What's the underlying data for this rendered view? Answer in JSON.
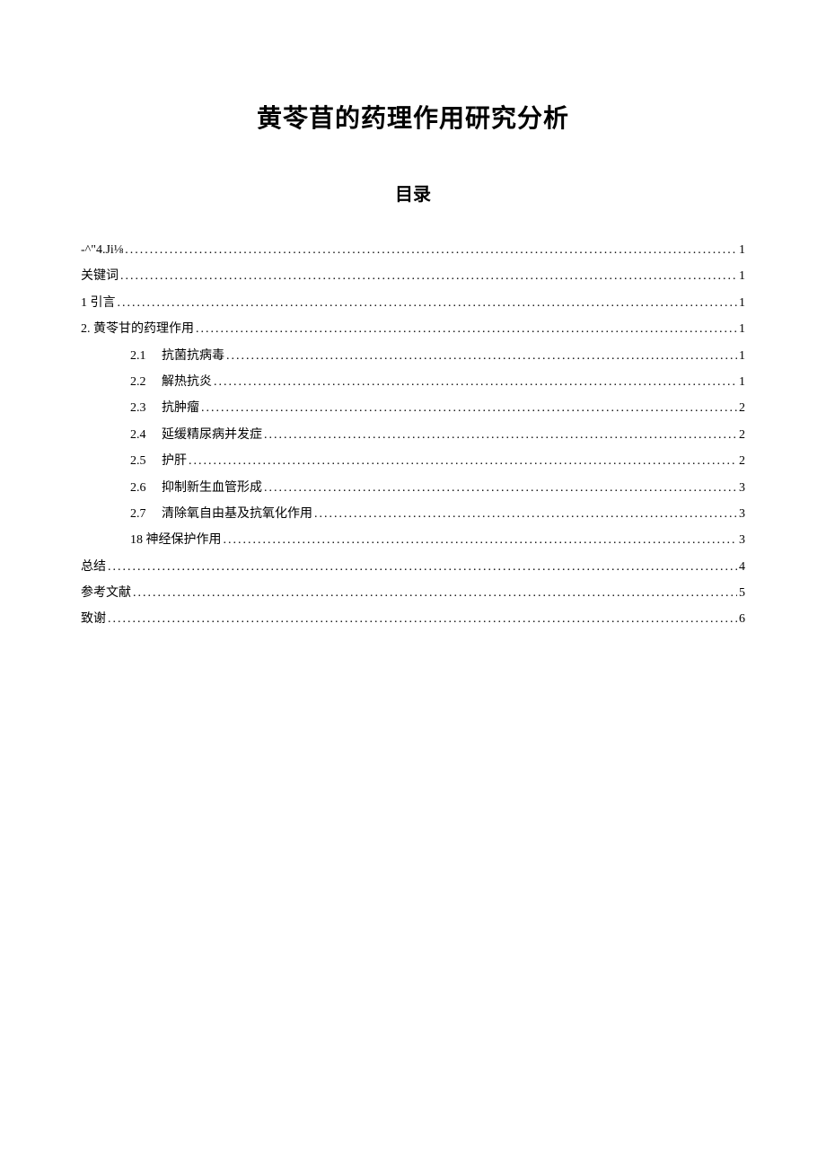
{
  "document": {
    "title": "黄苓苜的药理作用研究分析",
    "subtitle": "目录",
    "background_color": "#ffffff",
    "text_color": "#000000",
    "title_fontsize": 28,
    "subtitle_fontsize": 20,
    "body_fontsize": 14
  },
  "toc": {
    "entries": [
      {
        "level": 0,
        "num": "",
        "label": "-^\"4.Ji⅛",
        "page": "1"
      },
      {
        "level": 0,
        "num": "",
        "label": "关键词",
        "page": "1"
      },
      {
        "level": 0,
        "num": "",
        "label": "1 引言 ",
        "page": "1"
      },
      {
        "level": 0,
        "num": "",
        "label": "2. 黄苓甘的药理作用",
        "page": "1"
      },
      {
        "level": 1,
        "num": "2.1",
        "label": "抗菌抗病毒",
        "page": "1"
      },
      {
        "level": 1,
        "num": "2.2",
        "label": "解热抗炎",
        "page": "1"
      },
      {
        "level": 1,
        "num": "2.3",
        "label": "抗肿瘤",
        "page": "2"
      },
      {
        "level": 1,
        "num": "2.4",
        "label": "延缓精尿病并发症",
        "page": "2"
      },
      {
        "level": 1,
        "num": "2.5",
        "label": "护肝",
        "page": "2"
      },
      {
        "level": 1,
        "num": "2.6",
        "label": "抑制新生血管形成",
        "page": "3"
      },
      {
        "level": 1,
        "num": "2.7",
        "label": "清除氧自由基及抗氧化作用",
        "page": "3"
      },
      {
        "level": 1,
        "num": "",
        "label": "18 神经保护作用",
        "page": "3"
      },
      {
        "level": 0,
        "num": "",
        "label": "总结",
        "page": "4"
      },
      {
        "level": 0,
        "num": "",
        "label": "参考文献",
        "page": "5"
      },
      {
        "level": 0,
        "num": "",
        "label": "致谢",
        "page": "6"
      }
    ]
  }
}
